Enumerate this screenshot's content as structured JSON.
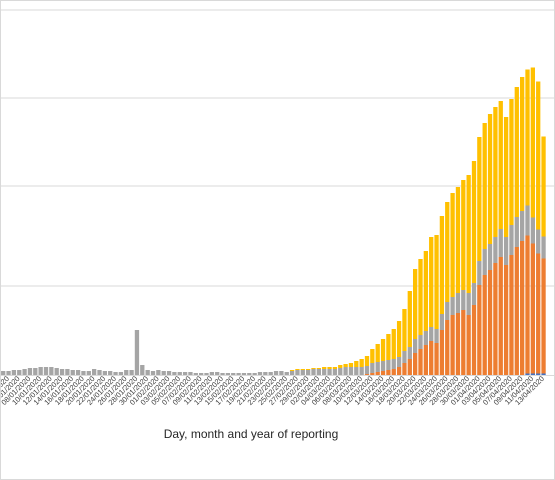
{
  "chart_data": {
    "type": "bar",
    "stacked": true,
    "xlabel": "Day, month and year of reporting",
    "grid": true,
    "x_start": "31/12/2019",
    "x_end": "17/04/2020",
    "tick_every_n_days": 2,
    "colors": {
      "blue": "#4472c4",
      "orange": "#ed7d31",
      "gray": "#a5a5a5",
      "yellow": "#ffc000",
      "grid": "#d9d9d9"
    },
    "series_order": [
      "blue",
      "orange",
      "gray",
      "yellow"
    ],
    "bars_relative_units": {
      "blue": [
        0,
        0,
        0,
        0,
        0,
        0,
        0,
        0,
        0,
        0,
        0,
        0,
        0,
        0,
        0,
        0,
        0,
        0,
        0,
        0,
        0,
        0,
        0,
        0,
        0,
        0,
        0,
        0,
        0,
        0,
        0,
        0,
        0,
        0,
        0,
        0,
        0,
        0,
        0,
        0,
        0,
        0,
        0,
        0,
        0,
        0,
        0,
        0,
        0,
        0,
        0,
        0,
        0,
        0,
        0,
        0,
        0,
        0,
        0,
        0,
        0,
        0,
        0,
        0,
        0,
        0,
        0,
        0,
        0,
        0,
        0,
        0,
        0,
        0,
        0,
        0,
        0,
        0,
        0,
        0,
        0,
        0,
        0,
        0,
        0,
        0,
        0,
        0,
        0,
        0,
        0,
        0,
        0,
        0,
        0,
        0,
        0,
        0,
        0,
        0,
        0,
        1.5,
        1.5,
        1.5,
        1.5,
        1.5,
        1.5,
        1.5,
        1.5,
        1.5
      ],
      "orange": [
        0,
        0,
        0,
        0,
        0,
        0,
        0,
        0,
        0,
        0,
        0,
        0,
        0,
        0,
        0,
        0,
        0,
        0,
        0,
        0,
        0,
        0,
        0,
        0,
        0,
        0,
        0,
        0,
        0,
        0,
        0,
        0,
        0,
        0,
        0,
        0,
        0,
        0,
        0,
        0,
        0,
        0,
        0,
        0,
        0,
        0,
        0,
        0,
        0,
        0,
        0,
        0,
        0,
        0,
        0,
        0,
        0,
        0,
        0,
        0,
        0,
        0,
        0,
        0,
        0,
        0,
        0,
        0,
        0,
        0,
        0,
        1,
        2,
        3,
        4,
        5,
        6,
        8,
        12,
        16,
        22,
        26,
        30,
        34,
        32,
        45,
        55,
        60,
        62,
        65,
        60,
        70,
        90,
        100,
        105,
        112,
        118,
        110,
        120,
        128,
        134,
        138,
        130,
        120,
        115
      ],
      "gray": [
        2,
        3,
        3,
        4,
        4,
        5,
        5,
        6,
        7,
        7,
        8,
        8,
        8,
        7,
        6,
        6,
        5,
        5,
        4,
        4,
        6,
        5,
        4,
        4,
        3,
        3,
        5,
        5,
        45,
        10,
        5,
        4,
        5,
        4,
        4,
        3,
        3,
        3,
        3,
        2,
        2,
        2,
        3,
        3,
        2,
        2,
        2,
        2,
        2,
        2,
        2,
        3,
        3,
        3,
        4,
        4,
        3,
        4,
        5,
        5,
        5,
        6,
        6,
        6,
        6,
        6,
        7,
        8,
        8,
        8,
        8,
        8,
        10,
        10,
        10,
        10,
        10,
        10,
        12,
        12,
        14,
        14,
        14,
        14,
        14,
        16,
        18,
        18,
        20,
        20,
        22,
        22,
        24,
        26,
        26,
        26,
        28,
        28,
        30,
        30,
        30,
        30,
        26,
        24,
        22
      ],
      "yellow": [
        0,
        0,
        0,
        0,
        0,
        0,
        0,
        0,
        0,
        0,
        0,
        0,
        0,
        0,
        0,
        0,
        0,
        0,
        0,
        0,
        0,
        0,
        0,
        0,
        0,
        0,
        0,
        0,
        0,
        0,
        0,
        0,
        0,
        0,
        0,
        0,
        0,
        0,
        0,
        0,
        0,
        0,
        0,
        0,
        0,
        0,
        0,
        0,
        0,
        0,
        0,
        0,
        0,
        0,
        0,
        0,
        0,
        1,
        1,
        1,
        1,
        1,
        1,
        2,
        2,
        2,
        3,
        3,
        4,
        6,
        8,
        10,
        14,
        18,
        22,
        26,
        30,
        36,
        42,
        56,
        70,
        76,
        80,
        90,
        94,
        98,
        100,
        104,
        106,
        110,
        118,
        122,
        124,
        126,
        130,
        130,
        128,
        120,
        126,
        130,
        134,
        136,
        150,
        148,
        100
      ]
    }
  }
}
